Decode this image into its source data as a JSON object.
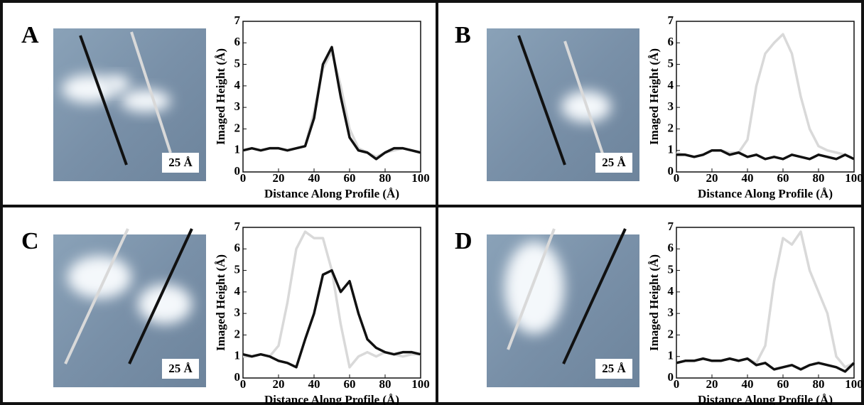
{
  "chart_data": [
    {
      "type": "line",
      "panel": "A",
      "scale_label": "25 Å",
      "xlabel": "Distance Along Profile (Å)",
      "ylabel": "Imaged Height (Å)",
      "x": [
        0,
        5,
        10,
        15,
        20,
        25,
        30,
        35,
        40,
        45,
        50,
        55,
        60,
        65,
        70,
        75,
        80,
        85,
        90,
        95,
        100
      ],
      "series": [
        {
          "color": "#111111",
          "values": [
            1.0,
            1.1,
            1.0,
            1.1,
            1.1,
            1.0,
            1.1,
            1.2,
            2.5,
            5.0,
            5.8,
            3.5,
            1.6,
            1.0,
            0.9,
            0.6,
            0.9,
            1.1,
            1.1,
            1.0,
            0.9
          ]
        },
        {
          "color": "#d9d9d9",
          "values": [
            1.0,
            1.1,
            1.0,
            1.1,
            1.1,
            1.0,
            1.1,
            1.2,
            2.8,
            4.8,
            5.6,
            4.0,
            2.0,
            1.1,
            0.9,
            0.7,
            0.9,
            1.0,
            1.1,
            1.0,
            0.9
          ]
        }
      ],
      "xlim": [
        0,
        100
      ],
      "xticks": [
        0,
        20,
        40,
        60,
        80,
        100
      ],
      "ylim": [
        0,
        7
      ],
      "yticks": [
        0,
        1,
        2,
        3,
        4,
        5,
        6,
        7
      ]
    },
    {
      "type": "line",
      "panel": "B",
      "scale_label": "25 Å",
      "xlabel": "Distance Along Profile (Å)",
      "ylabel": "Imaged Height (Å)",
      "x": [
        0,
        5,
        10,
        15,
        20,
        25,
        30,
        35,
        40,
        45,
        50,
        55,
        60,
        65,
        70,
        75,
        80,
        85,
        90,
        95,
        100
      ],
      "series": [
        {
          "color": "#111111",
          "values": [
            0.8,
            0.8,
            0.7,
            0.8,
            1.0,
            1.0,
            0.8,
            0.9,
            0.7,
            0.8,
            0.6,
            0.7,
            0.6,
            0.8,
            0.7,
            0.6,
            0.8,
            0.7,
            0.6,
            0.8,
            0.6
          ]
        },
        {
          "color": "#d9d9d9",
          "values": [
            0.9,
            0.8,
            0.7,
            0.8,
            1.0,
            1.0,
            0.9,
            0.9,
            1.5,
            4.0,
            5.5,
            6.0,
            6.4,
            5.5,
            3.5,
            2.0,
            1.2,
            1.0,
            0.9,
            0.8,
            0.6
          ]
        }
      ],
      "xlim": [
        0,
        100
      ],
      "xticks": [
        0,
        20,
        40,
        60,
        80,
        100
      ],
      "ylim": [
        0,
        7
      ],
      "yticks": [
        0,
        1,
        2,
        3,
        4,
        5,
        6,
        7
      ]
    },
    {
      "type": "line",
      "panel": "C",
      "scale_label": "25 Å",
      "xlabel": "Distance Along Profile (Å)",
      "ylabel": "Imaged Height (Å)",
      "x": [
        0,
        5,
        10,
        15,
        20,
        25,
        30,
        35,
        40,
        45,
        50,
        55,
        60,
        65,
        70,
        75,
        80,
        85,
        90,
        95,
        100
      ],
      "series": [
        {
          "color": "#111111",
          "values": [
            1.1,
            1.0,
            1.1,
            1.0,
            0.8,
            0.7,
            0.5,
            1.8,
            3.0,
            4.8,
            5.0,
            4.0,
            4.5,
            3.0,
            1.8,
            1.4,
            1.2,
            1.1,
            1.2,
            1.2,
            1.1
          ]
        },
        {
          "color": "#d9d9d9",
          "values": [
            1.0,
            1.0,
            1.1,
            1.0,
            1.5,
            3.5,
            6.0,
            6.8,
            6.5,
            6.5,
            5.0,
            2.5,
            0.5,
            1.0,
            1.2,
            1.0,
            1.2,
            1.1,
            1.0,
            1.1,
            1.1
          ]
        }
      ],
      "xlim": [
        0,
        100
      ],
      "xticks": [
        0,
        20,
        40,
        60,
        80,
        100
      ],
      "ylim": [
        0,
        7
      ],
      "yticks": [
        0,
        1,
        2,
        3,
        4,
        5,
        6,
        7
      ]
    },
    {
      "type": "line",
      "panel": "D",
      "scale_label": "25 Å",
      "xlabel": "Distance Along Profile (Å)",
      "ylabel": "Imaged Height (Å)",
      "x": [
        0,
        5,
        10,
        15,
        20,
        25,
        30,
        35,
        40,
        45,
        50,
        55,
        60,
        65,
        70,
        75,
        80,
        85,
        90,
        95,
        100
      ],
      "series": [
        {
          "color": "#111111",
          "values": [
            0.7,
            0.8,
            0.8,
            0.9,
            0.8,
            0.8,
            0.9,
            0.8,
            0.9,
            0.6,
            0.7,
            0.4,
            0.5,
            0.6,
            0.4,
            0.6,
            0.7,
            0.6,
            0.5,
            0.3,
            0.7
          ]
        },
        {
          "color": "#d9d9d9",
          "values": [
            0.7,
            0.8,
            0.8,
            0.9,
            0.8,
            0.8,
            0.9,
            0.8,
            0.9,
            0.7,
            1.5,
            4.5,
            6.5,
            6.2,
            6.8,
            5.0,
            4.0,
            3.0,
            1.0,
            0.5,
            0.7
          ]
        }
      ],
      "xlim": [
        0,
        100
      ],
      "xticks": [
        0,
        20,
        40,
        60,
        80,
        100
      ],
      "ylim": [
        0,
        7
      ],
      "yticks": [
        0,
        1,
        2,
        3,
        4,
        5,
        6,
        7
      ]
    }
  ]
}
